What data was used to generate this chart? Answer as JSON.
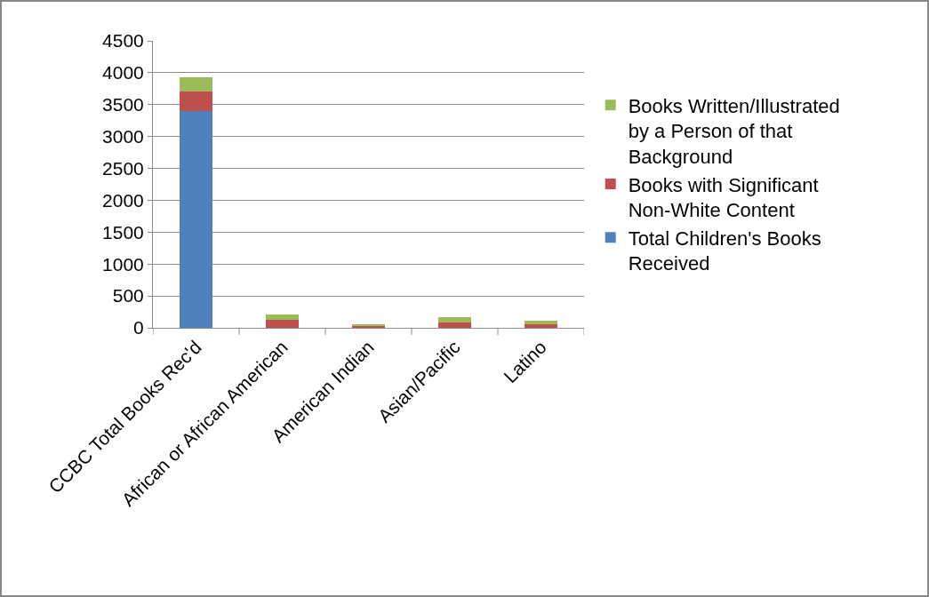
{
  "chart_data": {
    "type": "bar",
    "stacked": true,
    "categories": [
      "CCBC Total Books Rec'd",
      "African or African American",
      "American Indian",
      "Asian/Pacific",
      "Latino"
    ],
    "series": [
      {
        "name": "Total Children's Books Received",
        "color": "#4f81bd",
        "values": [
          3400,
          0,
          0,
          0,
          0
        ]
      },
      {
        "name": "Books with Significant Non-White Content",
        "color": "#c0504d",
        "values": [
          300,
          125,
          30,
          85,
          60
        ]
      },
      {
        "name": "Books Written/Illustrated by a Person of that Background",
        "color": "#9bbb59",
        "values": [
          230,
          85,
          20,
          85,
          45
        ]
      }
    ],
    "ylim": [
      0,
      4500
    ],
    "yticks": [
      0,
      500,
      1000,
      1500,
      2000,
      2500,
      3000,
      3500,
      4000,
      4500
    ],
    "grid": "y",
    "legend": "right"
  }
}
